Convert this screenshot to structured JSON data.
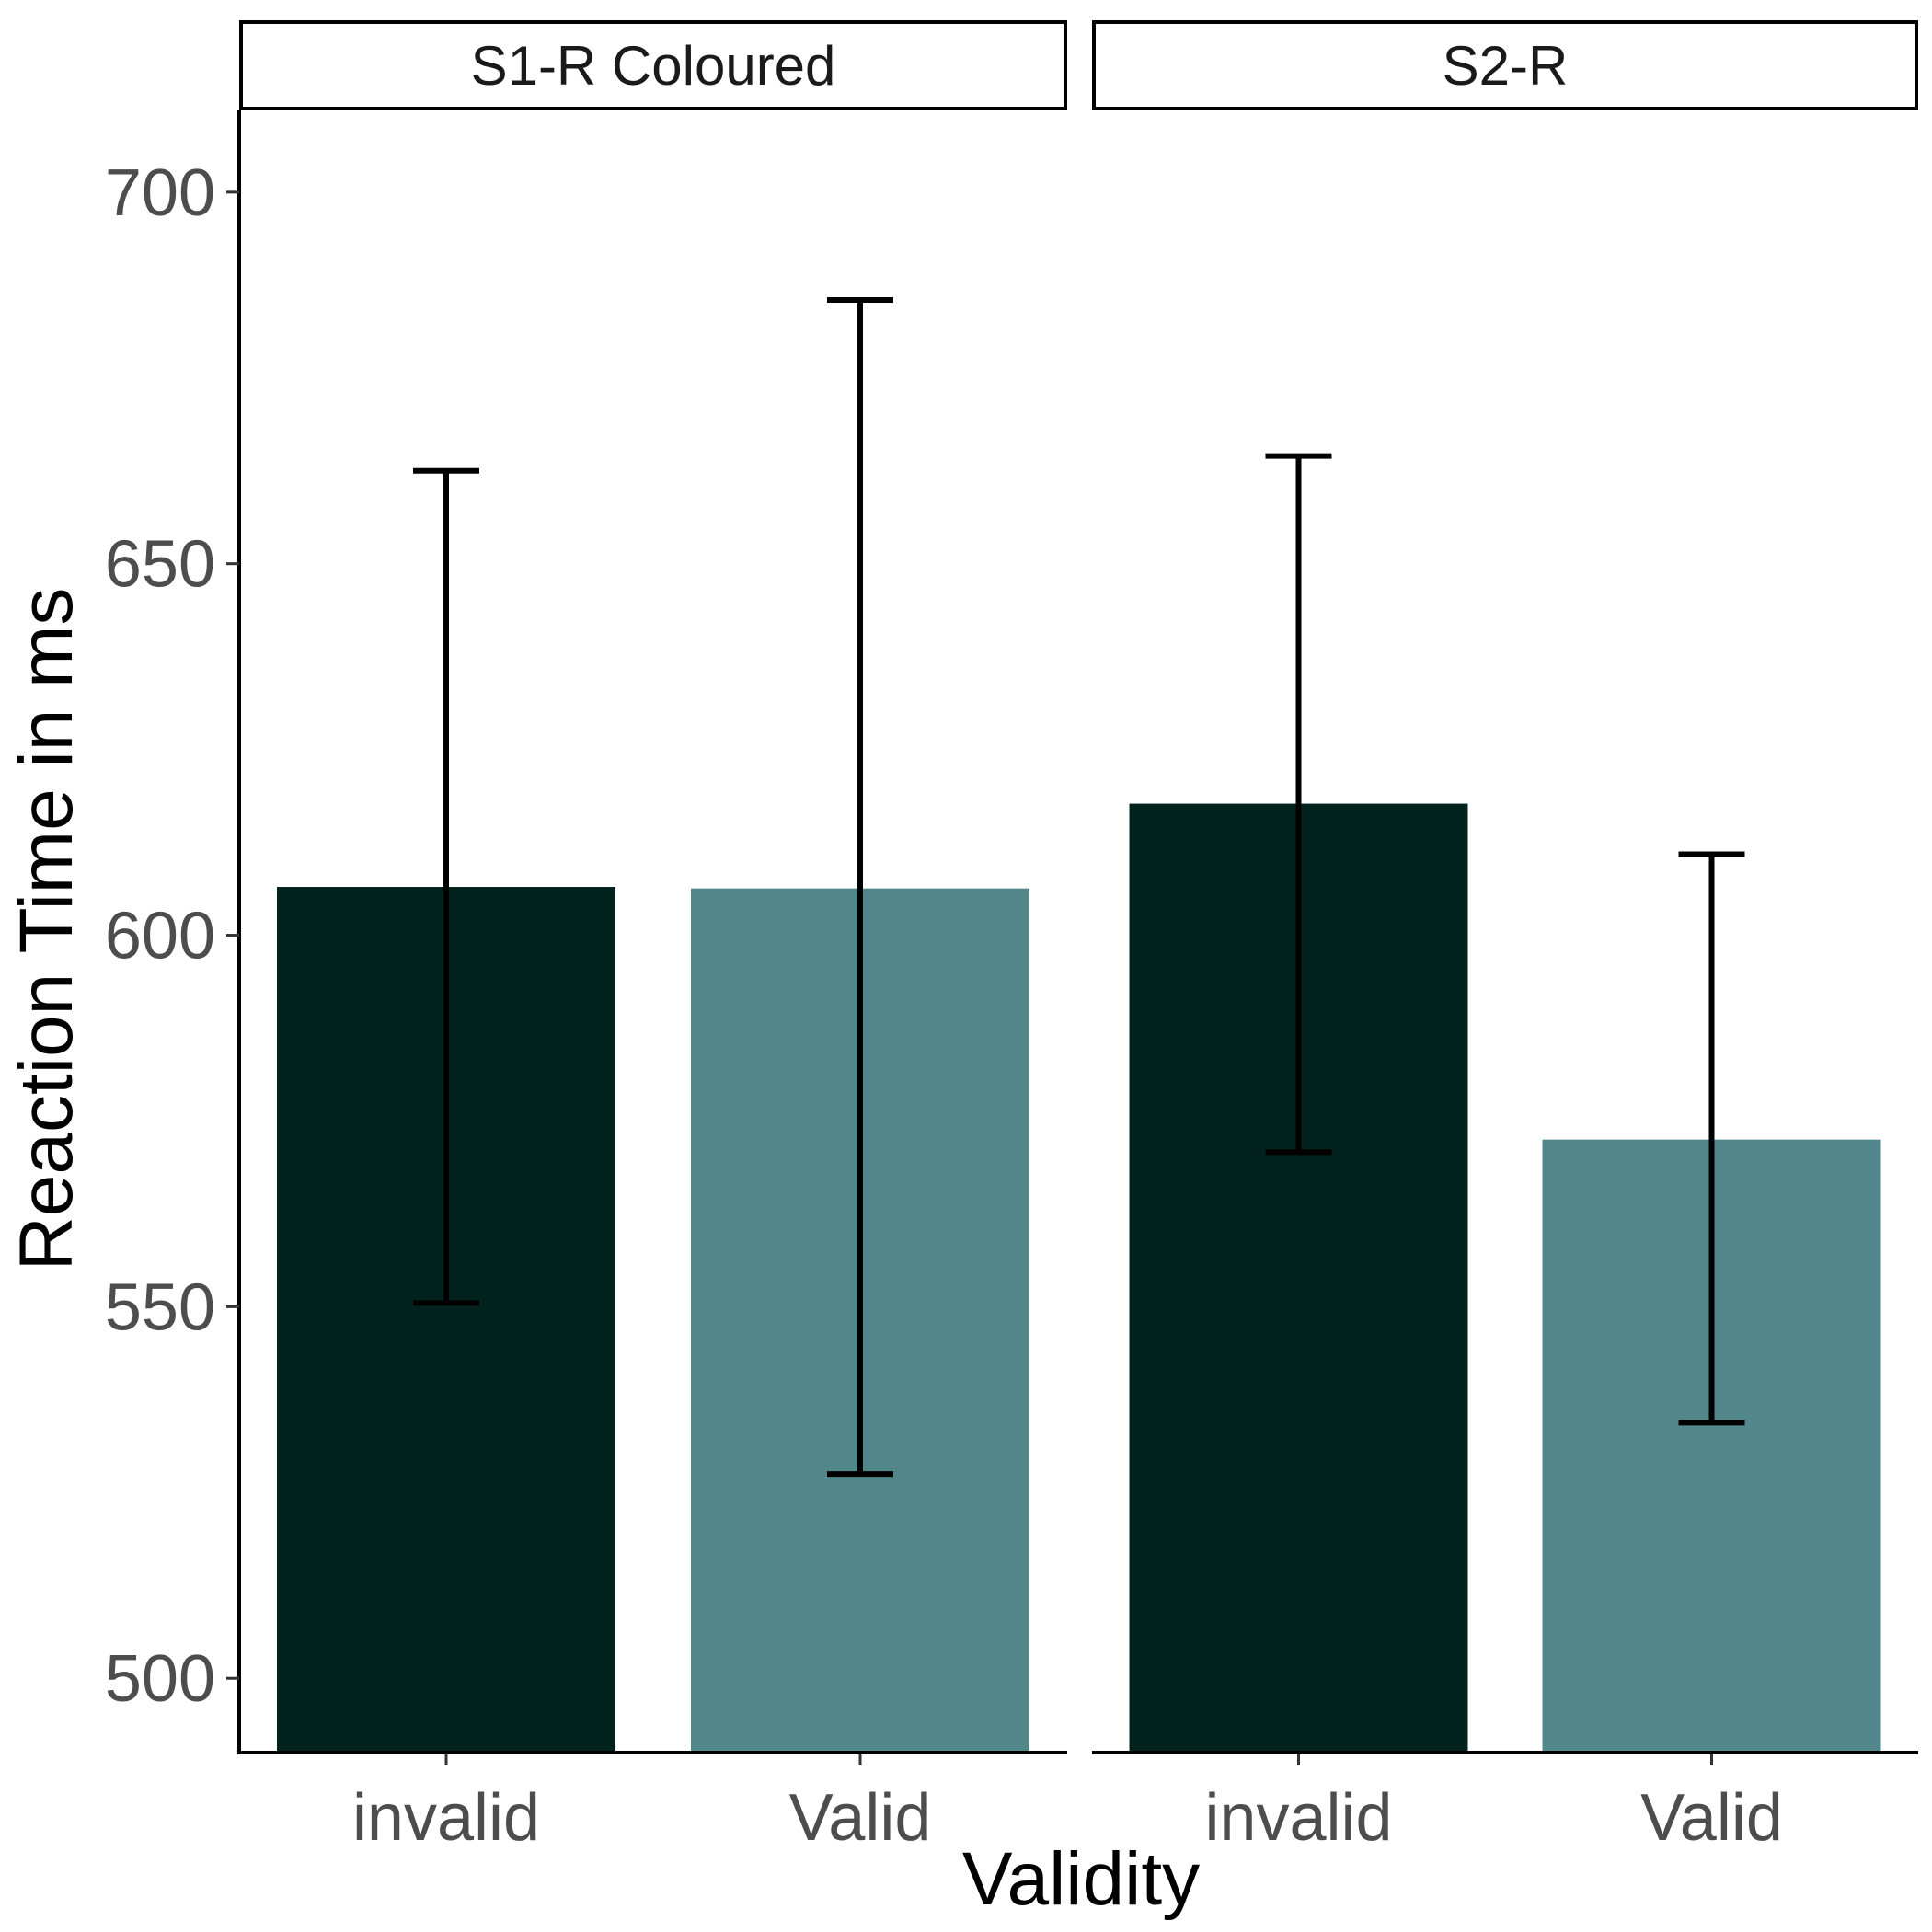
{
  "chart_data": {
    "type": "bar",
    "ylabel": "Reaction Time in ms",
    "xlabel": "Validity",
    "yticks": [
      500,
      550,
      600,
      650,
      700
    ],
    "ylim": [
      490,
      711
    ],
    "grid": false,
    "legend": "none",
    "colors": {
      "invalid": "#02231d",
      "Valid": "#52888b"
    },
    "categories": [
      "invalid",
      "Valid"
    ],
    "panels": [
      {
        "label": "S1-R Coloured",
        "bars": [
          {
            "category": "invalid",
            "value": 606.5,
            "err_low": 550.5,
            "err_high": 662.5
          },
          {
            "category": "Valid",
            "value": 606.3,
            "err_low": 527.5,
            "err_high": 685.5
          }
        ]
      },
      {
        "label": "S2-R",
        "bars": [
          {
            "category": "invalid",
            "value": 617.7,
            "err_low": 570.8,
            "err_high": 664.5
          },
          {
            "category": "Valid",
            "value": 572.5,
            "err_low": 534.4,
            "err_high": 610.9
          }
        ]
      }
    ]
  }
}
